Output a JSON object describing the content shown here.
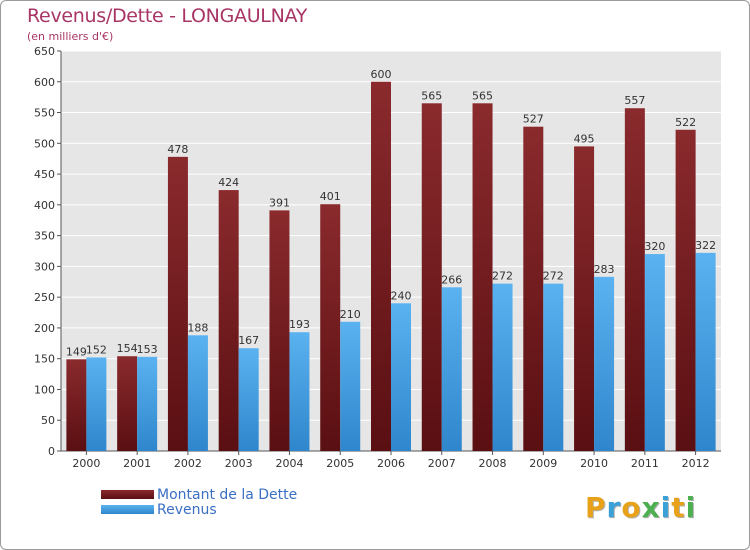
{
  "chart_data": {
    "type": "bar",
    "title": "Revenus/Dette - LONGAULNAY",
    "subtitle": "(en milliers d'€)",
    "categories": [
      "2000",
      "2001",
      "2002",
      "2003",
      "2004",
      "2005",
      "2006",
      "2007",
      "2008",
      "2009",
      "2010",
      "2011",
      "2012"
    ],
    "series": [
      {
        "name": "Montant de la Dette",
        "color": "#7a1f22",
        "values": [
          149,
          154,
          478,
          424,
          391,
          401,
          600,
          565,
          565,
          527,
          495,
          557,
          522
        ]
      },
      {
        "name": "Revenus",
        "color": "#4aa3e8",
        "values": [
          152,
          153,
          188,
          167,
          193,
          210,
          240,
          266,
          272,
          272,
          283,
          320,
          322
        ]
      }
    ],
    "ylim": [
      0,
      650
    ],
    "yticks": [
      0,
      50,
      100,
      150,
      200,
      250,
      300,
      350,
      400,
      450,
      500,
      550,
      600,
      650
    ],
    "grid": true,
    "legend_position": "bottom-left"
  },
  "logo": {
    "letters": [
      {
        "ch": "P",
        "color": "#e8a21a"
      },
      {
        "ch": "r",
        "color": "#3aa0d8"
      },
      {
        "ch": "o",
        "color": "#e8a21a"
      },
      {
        "ch": "x",
        "color": "#4db050"
      },
      {
        "ch": "i",
        "color": "#3aa0d8"
      },
      {
        "ch": "t",
        "color": "#e8a21a"
      },
      {
        "ch": "i",
        "color": "#4db050"
      }
    ]
  }
}
